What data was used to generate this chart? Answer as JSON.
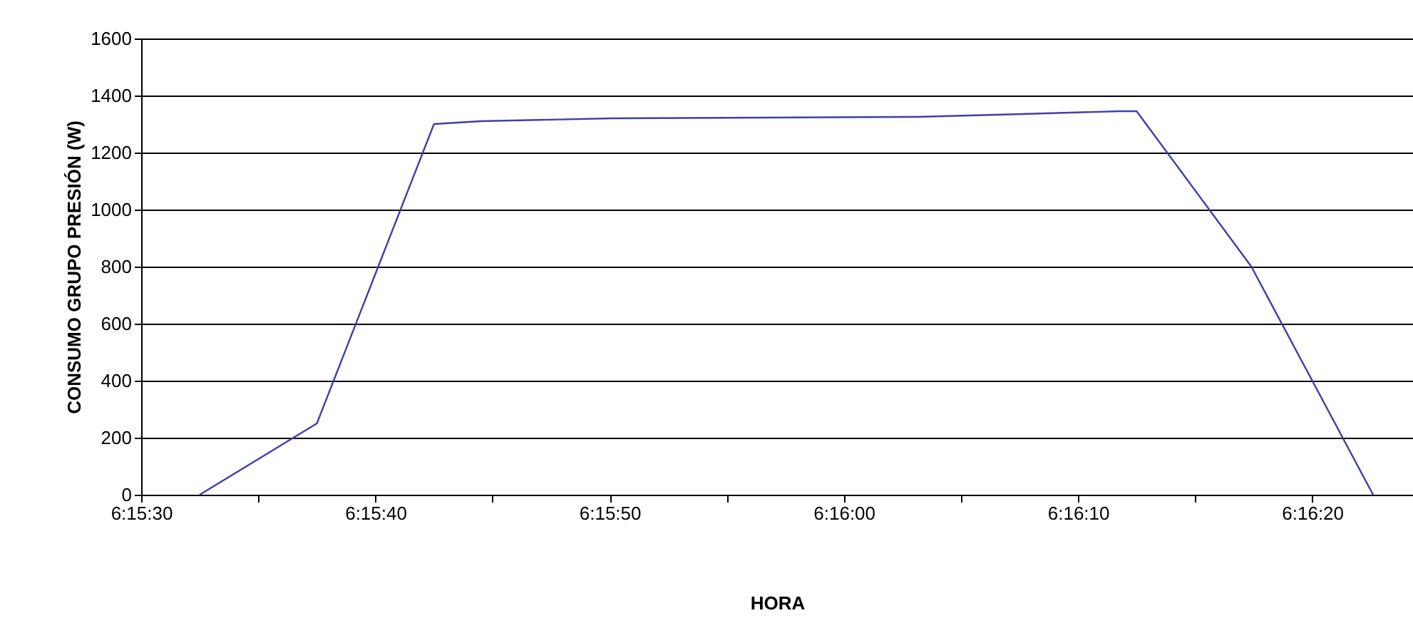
{
  "chart_data": {
    "type": "line",
    "xlabel": "HORA",
    "ylabel": "CONSUMO GRUPO PRESIÓN (W)",
    "x": [
      6.259028,
      6.260417,
      6.261806,
      6.262361,
      6.263917,
      6.267528,
      6.268778,
      6.269944,
      6.270139,
      6.2715,
      6.272944
    ],
    "series": [
      {
        "color": "#3f3fa8",
        "values": [
          0,
          250,
          1300,
          1310,
          1320,
          1325,
          1335,
          1345,
          1345,
          800,
          0
        ]
      }
    ],
    "xlim": [
      6.258333,
      6.273417
    ],
    "xticks": [
      {
        "value": 6.258333,
        "label": "6:15:30"
      },
      {
        "value": 6.259722,
        "label": null
      },
      {
        "value": 6.261111,
        "label": "6:15:40"
      },
      {
        "value": 6.2625,
        "label": null
      },
      {
        "value": 6.263889,
        "label": "6:15:50"
      },
      {
        "value": 6.265278,
        "label": null
      },
      {
        "value": 6.266667,
        "label": "6:16:00"
      },
      {
        "value": 6.268056,
        "label": null
      },
      {
        "value": 6.269444,
        "label": "6:16:10"
      },
      {
        "value": 6.270833,
        "label": null
      },
      {
        "value": 6.272222,
        "label": "6:16:20"
      }
    ],
    "ylim": [
      0,
      1600
    ],
    "yticks": [
      0,
      200,
      400,
      600,
      800,
      1000,
      1200,
      1400,
      1600
    ],
    "grid": "y",
    "marker": "none",
    "line_style": "solid"
  }
}
